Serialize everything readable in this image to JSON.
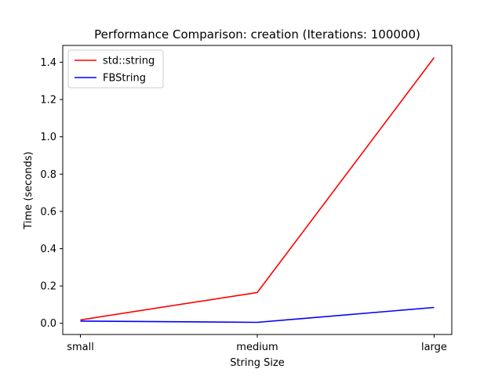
{
  "chart_data": {
    "type": "line",
    "title": "Performance Comparison: creation (Iterations: 100000)",
    "xlabel": "String Size",
    "ylabel": "Time (seconds)",
    "categories": [
      "small",
      "medium",
      "large"
    ],
    "series": [
      {
        "name": "std::string",
        "color": "#ff0000",
        "values": [
          0.018,
          0.165,
          1.425
        ]
      },
      {
        "name": "FBString",
        "color": "#0000ff",
        "values": [
          0.012,
          0.005,
          0.085
        ]
      }
    ],
    "ylim": [
      -0.06,
      1.49
    ],
    "yticks": [
      0.0,
      0.2,
      0.4,
      0.6,
      0.8,
      1.0,
      1.2,
      1.4
    ],
    "ytick_labels": [
      "0.0",
      "0.2",
      "0.4",
      "0.6",
      "0.8",
      "1.0",
      "1.2",
      "1.4"
    ],
    "grid": false,
    "legend_position": "top-left"
  }
}
